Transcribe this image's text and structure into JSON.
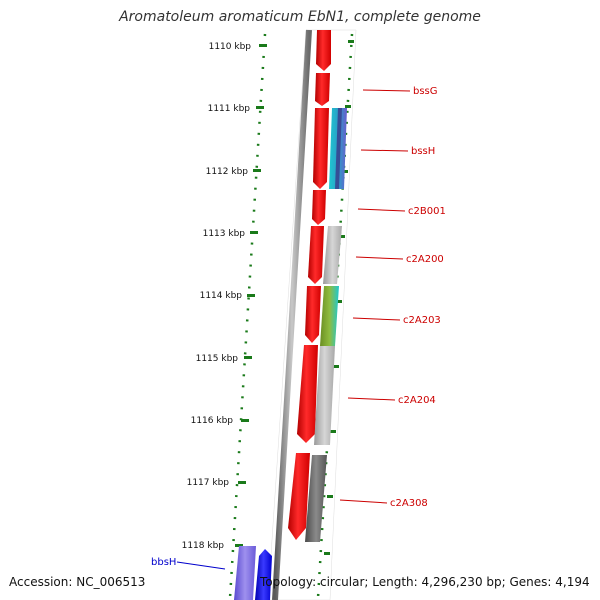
{
  "title": "Aromatoleum aromaticum EbN1, complete genome",
  "footer": {
    "accession": "Accession: NC_006513",
    "summary": "Topology: circular; Length: 4,296,230 bp; Genes: 4,194"
  },
  "ruler_labels": [
    "1110 kbp",
    "1111 kbp",
    "1112 kbp",
    "1113 kbp",
    "1114 kbp",
    "1115 kbp",
    "1116 kbp",
    "1117 kbp",
    "1118 kbp"
  ],
  "gene_labels": [
    "bssG",
    "bssH",
    "c2B001",
    "c2A200",
    "c2A203",
    "c2A204",
    "c2A308",
    "bbsH"
  ],
  "colors": {
    "ruler_tick": "#1a7a1a",
    "gene_red": "#ff0000",
    "label_red": "#cc0000",
    "label_blue": "#0000cc",
    "backbone": "#7a7a7a",
    "gene_blue": "#0000ee",
    "gene_lavender": "#7b68d8",
    "gene_grey": "#b8b8b8",
    "gene_darkgrey": "#6a6a6a",
    "gene_cyan": "#1ec8d0",
    "gene_olive": "#6b8e23"
  }
}
